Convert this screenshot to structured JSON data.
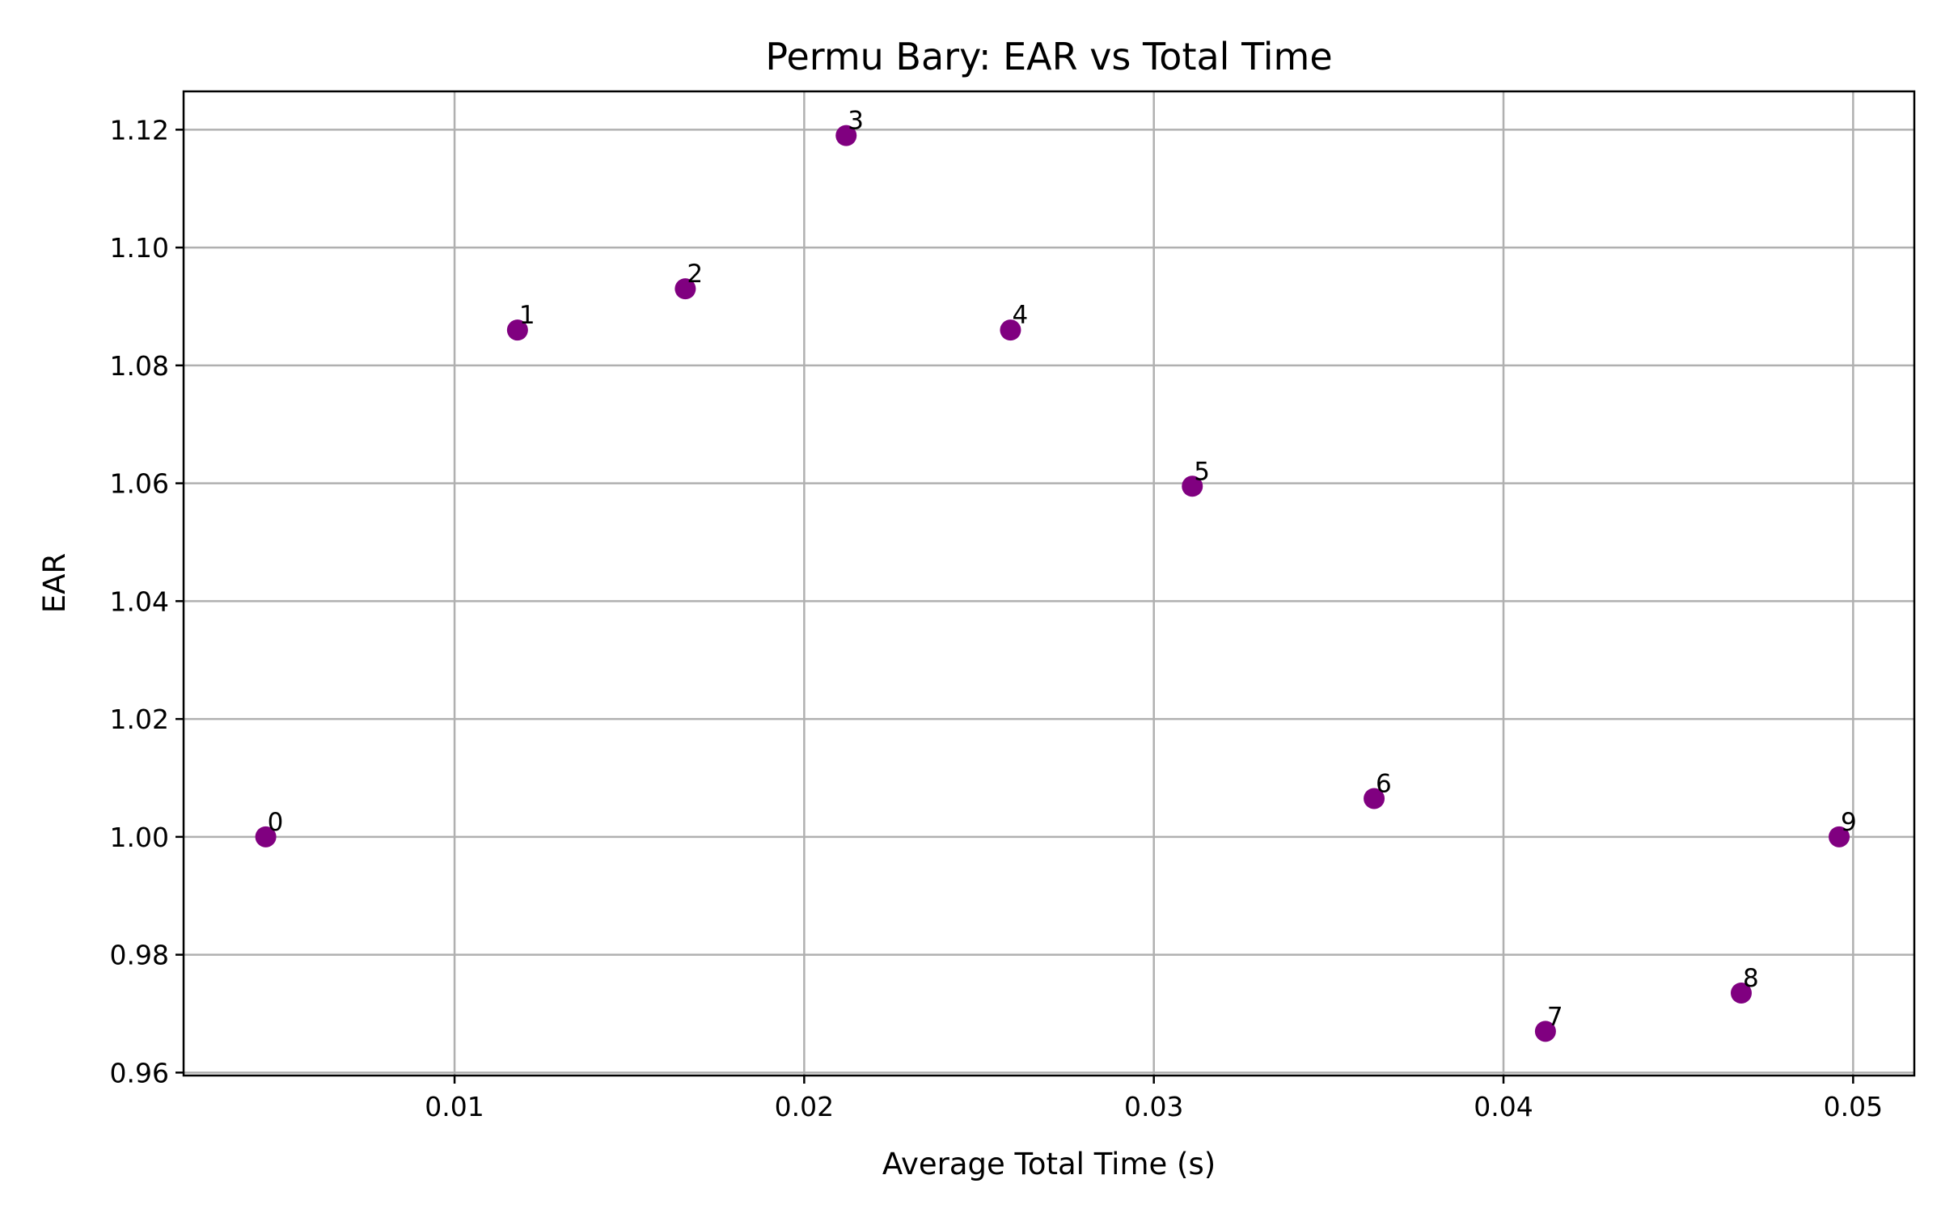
{
  "chart_data": {
    "type": "scatter",
    "title": "Permu Bary: EAR vs Total Time",
    "xlabel": "Average Total Time (s)",
    "ylabel": "EAR",
    "xlim": [
      0.00225,
      0.05175
    ],
    "ylim": [
      0.9595,
      1.1265
    ],
    "xticks": [
      0.01,
      0.02,
      0.03,
      0.04,
      0.05
    ],
    "xtick_labels": [
      "0.01",
      "0.02",
      "0.03",
      "0.04",
      "0.05"
    ],
    "yticks": [
      0.96,
      0.98,
      1.0,
      1.02,
      1.04,
      1.06,
      1.08,
      1.1,
      1.12
    ],
    "ytick_labels": [
      "0.96",
      "0.98",
      "1.00",
      "1.02",
      "1.04",
      "1.06",
      "1.08",
      "1.10",
      "1.12"
    ],
    "grid": true,
    "marker_color": "#800080",
    "points": [
      {
        "label": "0",
        "x": 0.0046,
        "y": 1.0
      },
      {
        "label": "1",
        "x": 0.0118,
        "y": 1.086
      },
      {
        "label": "2",
        "x": 0.0166,
        "y": 1.093
      },
      {
        "label": "3",
        "x": 0.0212,
        "y": 1.119
      },
      {
        "label": "4",
        "x": 0.0259,
        "y": 1.086
      },
      {
        "label": "5",
        "x": 0.0311,
        "y": 1.0595
      },
      {
        "label": "6",
        "x": 0.0363,
        "y": 1.0065
      },
      {
        "label": "7",
        "x": 0.0412,
        "y": 0.967
      },
      {
        "label": "8",
        "x": 0.0468,
        "y": 0.9735
      },
      {
        "label": "9",
        "x": 0.0496,
        "y": 1.0
      }
    ]
  }
}
